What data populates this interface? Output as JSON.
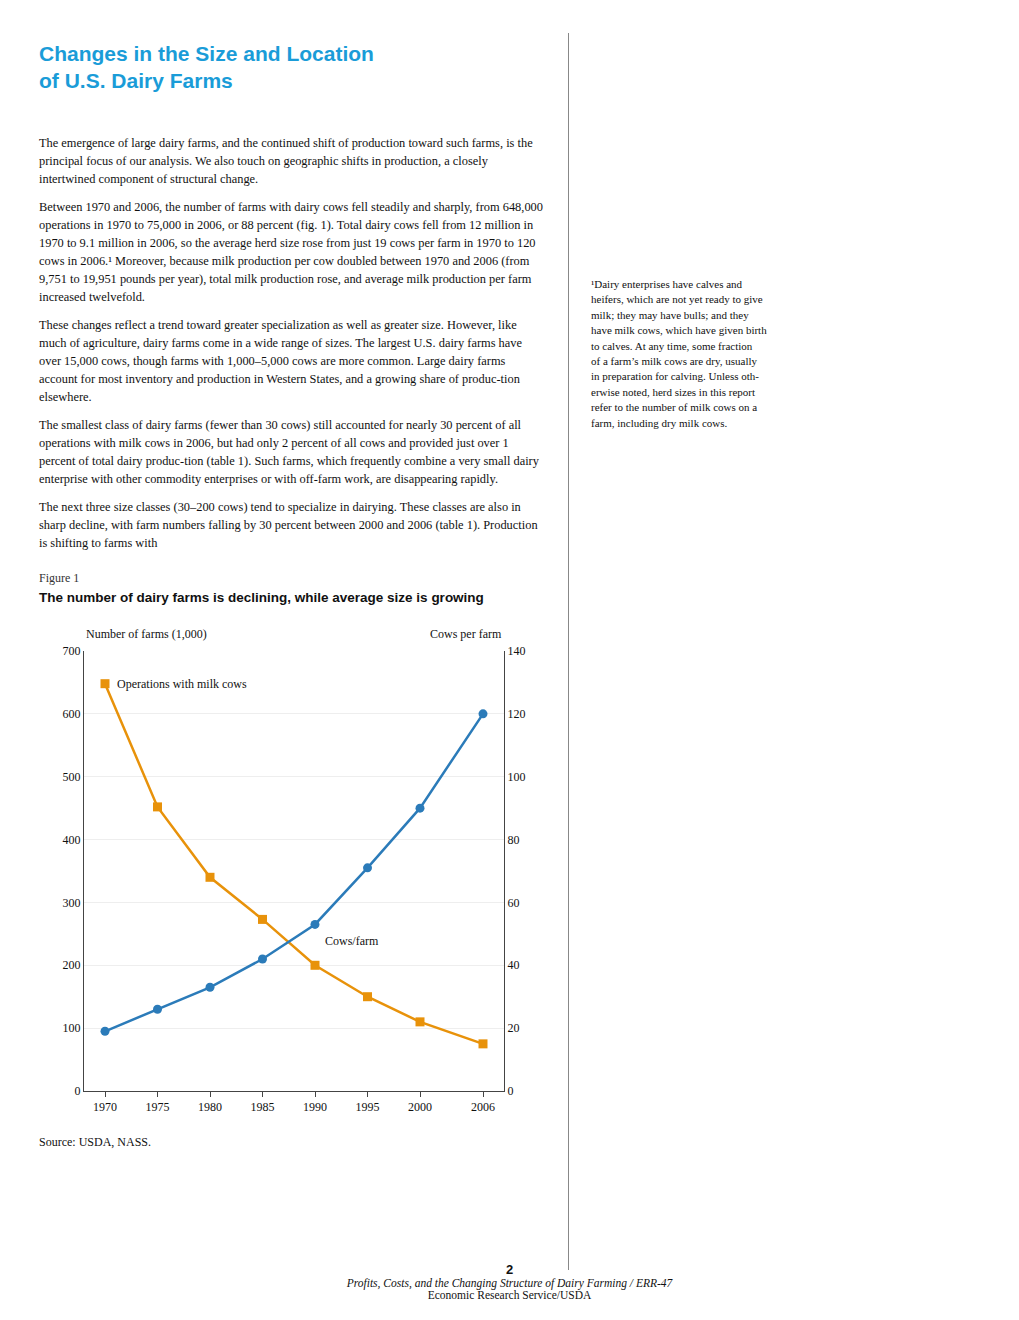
{
  "page_title": [
    "Changes in the Size and Location",
    "of U.S. Dairy Farms"
  ],
  "title_color": "#1A9CD8",
  "background": "#FFFFFF",
  "paragraphs": [
    "The emergence of large dairy farms, and the continued shift of production toward such farms, is the principal focus of our analysis. We also touch on geographic shifts in production, a closely intertwined component of structural change.",
    "Between 1970 and 2006, the number of farms with dairy cows fell steadily and sharply, from 648,000 operations in 1970 to 75,000 in 2006, or 88 percent (fig. 1). Total dairy cows fell from 12 million in 1970 to 9.1 million in 2006, so the average herd size rose from just 19 cows per farm in 1970 to 120 cows in 2006.¹ Moreover, because milk production per cow doubled between 1970 and 2006 (from 9,751 to 19,951 pounds per year), total milk production rose, and average milk production per farm increased twelvefold.",
    "These changes reflect a trend toward greater specialization as well as greater size. However, like much of agriculture, dairy farms come in a wide range of sizes. The largest U.S. dairy farms have over 15,000 cows, though farms with 1,000–5,000 cows are more common. Large dairy farms account for most inventory and production in Western States, and a growing share of produc-tion elsewhere.",
    " The smallest class of dairy farms (fewer than 30 cows) still accounted for nearly 30 percent of all operations with milk cows in 2006, but had only 2 percent of all cows and provided just over 1 percent of total dairy produc-tion (table 1). Such farms, which frequently combine a very small dairy enterprise with other commodity enterprises or with off-farm work, are disappearing rapidly.",
    "The next three size classes (30–200 cows) tend to specialize in dairying. These classes are also in sharp decline, with farm numbers falling by 30 percent between 2000 and 2006 (table 1). Production is shifting to farms with"
  ],
  "footnote": "¹Dairy enterprises have calves and\nheifers, which are not yet ready to give\nmilk; they may have bulls; and they\nhave milk cows, which have given birth\nto calves. At any time, some fraction\nof a farm’s milk cows are dry, usually\nin preparation for calving. Unless oth-\nerwise noted, herd sizes in this report\nrefer to the number of milk cows on a\nfarm, including dry milk cows.",
  "figure_label": "Figure 1",
  "source": "Source: USDA, NASS.",
  "footer": [
    "2",
    "Profits, Costs, and the Changing Structure of Dairy Farming / ERR-47",
    "Economic Research Service/USDA"
  ],
  "chart_data": {
    "type": "line",
    "title": "The number of dairy farms is declining, while average size is growing",
    "ylabel": "Number of farms (1,000)",
    "y2label": "Cows per farm",
    "x": [
      1970,
      1975,
      1980,
      1985,
      1990,
      1995,
      2000,
      2006
    ],
    "xlim": [
      1968,
      2008
    ],
    "xticks": [
      1970,
      1975,
      1980,
      1985,
      1990,
      1995,
      2000,
      2006
    ],
    "ylim": [
      0,
      700
    ],
    "yticks": [
      0,
      100,
      200,
      300,
      400,
      500,
      600,
      700
    ],
    "y2lim": [
      0,
      140
    ],
    "y2ticks": [
      0,
      20,
      40,
      60,
      80,
      100,
      120,
      140
    ],
    "grid": true,
    "series": [
      {
        "name": "Operations with milk cows",
        "color": "#E8920A",
        "marker": "square",
        "values": [
          648,
          452,
          340,
          273,
          200,
          150,
          110,
          75
        ]
      },
      {
        "name": "Cows/farm",
        "color": "#2B7BB9",
        "marker": "circle",
        "axis": "y2",
        "values": [
          19,
          26,
          33,
          42,
          53,
          71,
          90,
          120
        ]
      }
    ]
  }
}
